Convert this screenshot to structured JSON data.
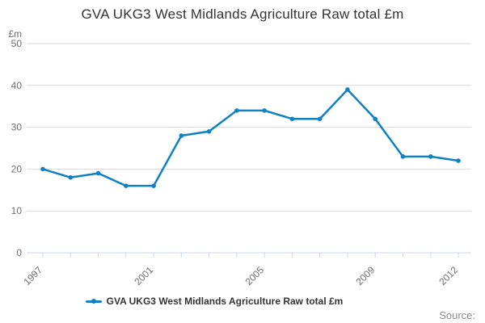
{
  "title": "GVA UKG3 West Midlands Agriculture Raw total £m",
  "legend": {
    "label": "GVA UKG3 West Midlands Agriculture Raw total £m"
  },
  "source_label": "Source:",
  "colors": {
    "line": "#1081c2",
    "grid": "#d9d9d9",
    "axis_line": "#ccd6eb",
    "tick_label": "#6e6e6e",
    "title_text": "#333333",
    "legend_text": "#333333",
    "source_text": "#8c8c8c",
    "background": "#ffffff"
  },
  "chart_data": {
    "type": "line",
    "title": "GVA UKG3 West Midlands Agriculture Raw total £m",
    "ylabel": "£m",
    "xlabel": "",
    "x": [
      1997,
      1998,
      1999,
      2000,
      2001,
      2002,
      2003,
      2004,
      2005,
      2006,
      2007,
      2008,
      2009,
      2010,
      2011,
      2012
    ],
    "series": [
      {
        "name": "GVA UKG3 West Midlands Agriculture Raw total £m",
        "values": [
          20,
          18,
          19,
          16,
          16,
          28,
          29,
          34,
          34,
          32,
          32,
          39,
          32,
          23,
          23,
          22
        ]
      }
    ],
    "ylim": [
      0,
      50
    ],
    "y_ticks": [
      0,
      10,
      20,
      30,
      40,
      50
    ],
    "x_labeled_ticks": [
      "1997",
      "2001",
      "2005",
      "2009",
      "2012"
    ],
    "grid": true,
    "legend_position": "bottom"
  }
}
